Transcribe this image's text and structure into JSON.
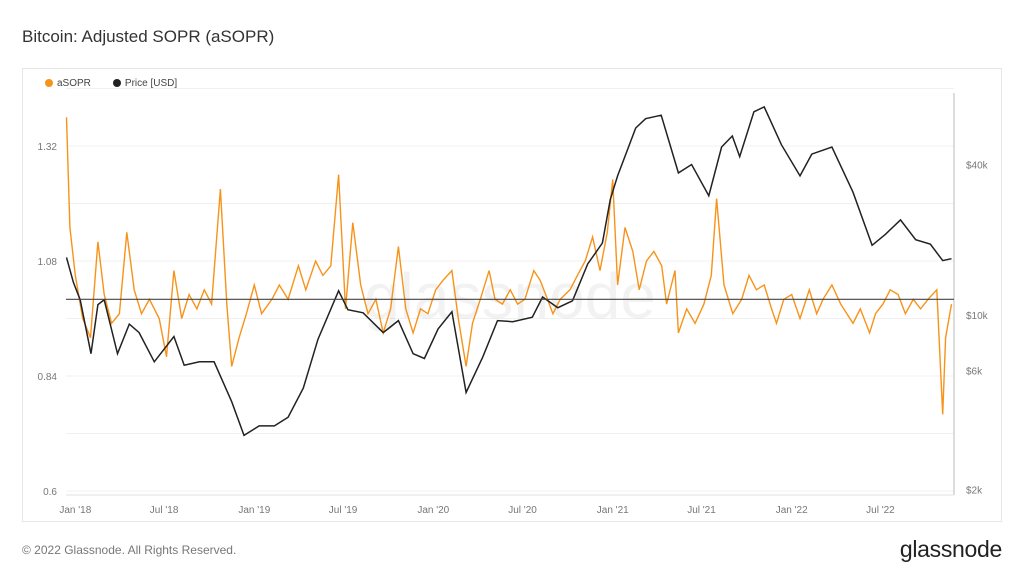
{
  "title": "Bitcoin: Adjusted SOPR (aSOPR)",
  "footer": "© 2022 Glassnode. All Rights Reserved.",
  "logo": "glassnode",
  "watermark": "glassnode",
  "chart_data": {
    "type": "line",
    "title": "Bitcoin: Adjusted SOPR (aSOPR)",
    "legend_position": "top-left",
    "grid": true,
    "x_range": [
      "2017-12-17",
      "2022-11-28"
    ],
    "x_ticks": [
      "Jan '18",
      "Jul '18",
      "Jan '19",
      "Jul '19",
      "Jan '20",
      "Jul '20",
      "Jan '21",
      "Jul '21",
      "Jan '22",
      "Jul '22"
    ],
    "x_tick_dates": [
      "2018-01-01",
      "2018-07-01",
      "2019-01-01",
      "2019-07-01",
      "2020-01-01",
      "2020-07-01",
      "2021-01-01",
      "2021-07-01",
      "2022-01-01",
      "2022-07-01"
    ],
    "y_left": {
      "ticks": [
        "0.6",
        "0.84",
        "1.08",
        "1.32"
      ],
      "range": [
        0.6,
        1.44
      ],
      "reference_line": 1.0
    },
    "y_right": {
      "ticks": [
        "$2k",
        "$6k",
        "$10k",
        "$40k"
      ],
      "tick_values": [
        2000,
        6000,
        10000,
        40000
      ],
      "scale": "log",
      "range": [
        2000,
        80000
      ]
    },
    "colors": {
      "asopr": "#f7931a",
      "price": "#222222",
      "reference": "#444444"
    },
    "series": [
      {
        "name": "aSOPR",
        "axis": "left",
        "points": [
          [
            "2017-12-18",
            1.38
          ],
          [
            "2017-12-25",
            1.15
          ],
          [
            "2018-01-05",
            1.05
          ],
          [
            "2018-01-20",
            0.96
          ],
          [
            "2018-02-05",
            0.92
          ],
          [
            "2018-02-20",
            1.12
          ],
          [
            "2018-03-05",
            1.01
          ],
          [
            "2018-03-20",
            0.95
          ],
          [
            "2018-04-05",
            0.97
          ],
          [
            "2018-04-20",
            1.14
          ],
          [
            "2018-05-05",
            1.02
          ],
          [
            "2018-05-20",
            0.97
          ],
          [
            "2018-06-05",
            1.0
          ],
          [
            "2018-06-25",
            0.96
          ],
          [
            "2018-07-10",
            0.88
          ],
          [
            "2018-07-25",
            1.06
          ],
          [
            "2018-08-10",
            0.96
          ],
          [
            "2018-08-25",
            1.01
          ],
          [
            "2018-09-10",
            0.98
          ],
          [
            "2018-09-25",
            1.02
          ],
          [
            "2018-10-10",
            0.99
          ],
          [
            "2018-10-28",
            1.23
          ],
          [
            "2018-11-10",
            0.99
          ],
          [
            "2018-11-20",
            0.86
          ],
          [
            "2018-12-05",
            0.92
          ],
          [
            "2018-12-20",
            0.97
          ],
          [
            "2019-01-05",
            1.03
          ],
          [
            "2019-01-20",
            0.97
          ],
          [
            "2019-02-10",
            1.0
          ],
          [
            "2019-02-25",
            1.03
          ],
          [
            "2019-03-15",
            1.0
          ],
          [
            "2019-04-05",
            1.07
          ],
          [
            "2019-04-20",
            1.02
          ],
          [
            "2019-05-10",
            1.08
          ],
          [
            "2019-05-25",
            1.05
          ],
          [
            "2019-06-10",
            1.07
          ],
          [
            "2019-06-26",
            1.26
          ],
          [
            "2019-07-10",
            0.98
          ],
          [
            "2019-07-25",
            1.16
          ],
          [
            "2019-08-10",
            1.03
          ],
          [
            "2019-08-25",
            0.97
          ],
          [
            "2019-09-10",
            1.0
          ],
          [
            "2019-09-25",
            0.93
          ],
          [
            "2019-10-10",
            0.98
          ],
          [
            "2019-10-26",
            1.11
          ],
          [
            "2019-11-10",
            0.98
          ],
          [
            "2019-11-25",
            0.93
          ],
          [
            "2019-12-10",
            0.98
          ],
          [
            "2019-12-25",
            0.97
          ],
          [
            "2020-01-10",
            1.02
          ],
          [
            "2020-01-25",
            1.04
          ],
          [
            "2020-02-12",
            1.06
          ],
          [
            "2020-02-25",
            0.96
          ],
          [
            "2020-03-12",
            0.86
          ],
          [
            "2020-03-25",
            0.95
          ],
          [
            "2020-04-10",
            1.0
          ],
          [
            "2020-04-28",
            1.06
          ],
          [
            "2020-05-10",
            1.0
          ],
          [
            "2020-05-25",
            0.99
          ],
          [
            "2020-06-10",
            1.02
          ],
          [
            "2020-06-25",
            0.99
          ],
          [
            "2020-07-10",
            1.0
          ],
          [
            "2020-07-28",
            1.06
          ],
          [
            "2020-08-10",
            1.04
          ],
          [
            "2020-08-25",
            1.0
          ],
          [
            "2020-09-05",
            0.97
          ],
          [
            "2020-09-20",
            1.0
          ],
          [
            "2020-10-10",
            1.02
          ],
          [
            "2020-10-25",
            1.05
          ],
          [
            "2020-11-10",
            1.08
          ],
          [
            "2020-11-25",
            1.13
          ],
          [
            "2020-12-10",
            1.06
          ],
          [
            "2020-12-25",
            1.14
          ],
          [
            "2021-01-05",
            1.25
          ],
          [
            "2021-01-15",
            1.03
          ],
          [
            "2021-01-30",
            1.15
          ],
          [
            "2021-02-15",
            1.1
          ],
          [
            "2021-02-28",
            1.02
          ],
          [
            "2021-03-15",
            1.08
          ],
          [
            "2021-03-30",
            1.1
          ],
          [
            "2021-04-15",
            1.07
          ],
          [
            "2021-04-25",
            0.99
          ],
          [
            "2021-05-12",
            1.06
          ],
          [
            "2021-05-19",
            0.93
          ],
          [
            "2021-06-05",
            0.98
          ],
          [
            "2021-06-22",
            0.95
          ],
          [
            "2021-07-10",
            0.99
          ],
          [
            "2021-07-25",
            1.05
          ],
          [
            "2021-08-05",
            1.21
          ],
          [
            "2021-08-20",
            1.03
          ],
          [
            "2021-09-07",
            0.97
          ],
          [
            "2021-09-25",
            1.0
          ],
          [
            "2021-10-10",
            1.05
          ],
          [
            "2021-10-25",
            1.02
          ],
          [
            "2021-11-10",
            1.03
          ],
          [
            "2021-11-25",
            0.98
          ],
          [
            "2021-12-05",
            0.95
          ],
          [
            "2021-12-20",
            1.0
          ],
          [
            "2022-01-05",
            1.01
          ],
          [
            "2022-01-22",
            0.96
          ],
          [
            "2022-02-10",
            1.02
          ],
          [
            "2022-02-25",
            0.97
          ],
          [
            "2022-03-10",
            1.0
          ],
          [
            "2022-03-28",
            1.03
          ],
          [
            "2022-04-15",
            0.99
          ],
          [
            "2022-05-10",
            0.95
          ],
          [
            "2022-05-25",
            0.98
          ],
          [
            "2022-06-13",
            0.93
          ],
          [
            "2022-06-25",
            0.97
          ],
          [
            "2022-07-10",
            0.99
          ],
          [
            "2022-07-25",
            1.02
          ],
          [
            "2022-08-10",
            1.01
          ],
          [
            "2022-08-25",
            0.97
          ],
          [
            "2022-09-10",
            1.0
          ],
          [
            "2022-09-25",
            0.98
          ],
          [
            "2022-10-10",
            1.0
          ],
          [
            "2022-10-28",
            1.02
          ],
          [
            "2022-11-09",
            0.76
          ],
          [
            "2022-11-15",
            0.92
          ],
          [
            "2022-11-27",
            0.99
          ]
        ]
      },
      {
        "name": "Price [USD]",
        "axis": "right",
        "points": [
          [
            "2017-12-18",
            17000
          ],
          [
            "2018-01-01",
            13500
          ],
          [
            "2018-01-15",
            11500
          ],
          [
            "2018-02-06",
            7000
          ],
          [
            "2018-02-20",
            11000
          ],
          [
            "2018-03-05",
            11500
          ],
          [
            "2018-04-01",
            7000
          ],
          [
            "2018-04-25",
            9200
          ],
          [
            "2018-05-15",
            8500
          ],
          [
            "2018-06-15",
            6500
          ],
          [
            "2018-07-25",
            8200
          ],
          [
            "2018-08-15",
            6300
          ],
          [
            "2018-09-15",
            6500
          ],
          [
            "2018-10-15",
            6500
          ],
          [
            "2018-11-20",
            4500
          ],
          [
            "2018-12-15",
            3300
          ],
          [
            "2019-01-15",
            3600
          ],
          [
            "2019-02-15",
            3600
          ],
          [
            "2019-03-15",
            3900
          ],
          [
            "2019-04-15",
            5100
          ],
          [
            "2019-05-15",
            8000
          ],
          [
            "2019-06-26",
            12500
          ],
          [
            "2019-07-15",
            10500
          ],
          [
            "2019-08-15",
            10200
          ],
          [
            "2019-09-25",
            8500
          ],
          [
            "2019-10-26",
            9500
          ],
          [
            "2019-11-25",
            7000
          ],
          [
            "2019-12-18",
            6700
          ],
          [
            "2020-01-15",
            8800
          ],
          [
            "2020-02-12",
            10300
          ],
          [
            "2020-03-12",
            4900
          ],
          [
            "2020-04-15",
            6800
          ],
          [
            "2020-05-15",
            9500
          ],
          [
            "2020-06-15",
            9400
          ],
          [
            "2020-07-25",
            9800
          ],
          [
            "2020-08-15",
            11800
          ],
          [
            "2020-09-15",
            10700
          ],
          [
            "2020-10-15",
            11400
          ],
          [
            "2020-11-15",
            16000
          ],
          [
            "2020-12-15",
            19400
          ],
          [
            "2020-12-31",
            29000
          ],
          [
            "2021-01-15",
            36000
          ],
          [
            "2021-02-21",
            56000
          ],
          [
            "2021-03-13",
            61000
          ],
          [
            "2021-04-14",
            63000
          ],
          [
            "2021-05-19",
            37000
          ],
          [
            "2021-06-15",
            40000
          ],
          [
            "2021-07-20",
            30000
          ],
          [
            "2021-08-15",
            47000
          ],
          [
            "2021-09-06",
            52000
          ],
          [
            "2021-09-21",
            43000
          ],
          [
            "2021-10-20",
            65000
          ],
          [
            "2021-11-10",
            68000
          ],
          [
            "2021-12-15",
            48000
          ],
          [
            "2022-01-22",
            36000
          ],
          [
            "2022-02-15",
            44000
          ],
          [
            "2022-03-28",
            47000
          ],
          [
            "2022-05-10",
            31000
          ],
          [
            "2022-06-18",
            19000
          ],
          [
            "2022-07-15",
            21000
          ],
          [
            "2022-08-15",
            24000
          ],
          [
            "2022-09-15",
            20000
          ],
          [
            "2022-10-15",
            19200
          ],
          [
            "2022-11-09",
            16500
          ],
          [
            "2022-11-27",
            16800
          ]
        ]
      }
    ]
  }
}
